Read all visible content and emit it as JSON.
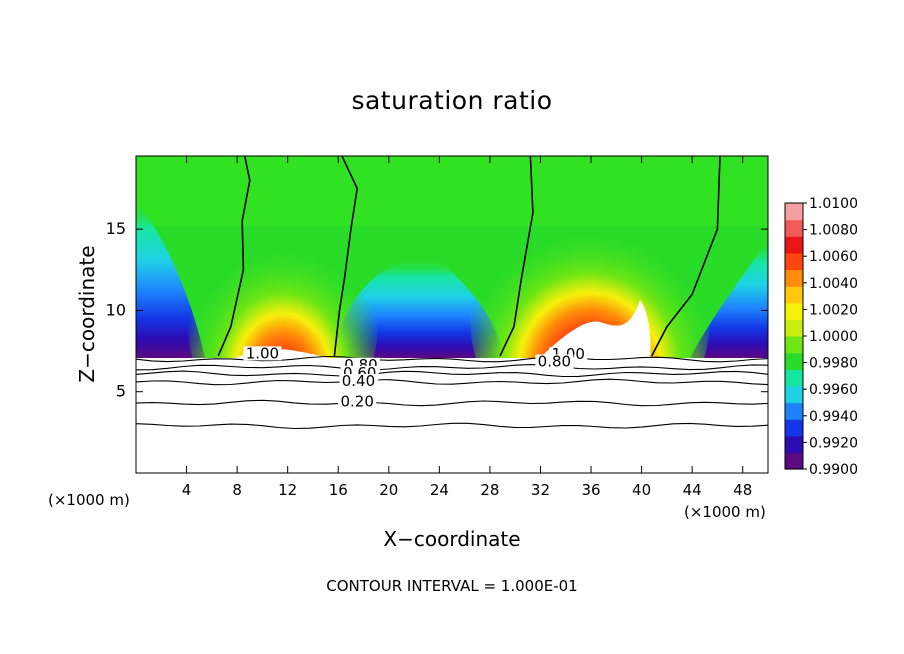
{
  "chart_data": {
    "type": "heatmap",
    "title": "saturation ratio",
    "xlabel": "X−coordinate",
    "ylabel": "Z−coordinate",
    "x_unit_label": "(×1000 m)",
    "x_range": [
      0,
      50
    ],
    "y_range": [
      0,
      19.5
    ],
    "x_ticks": [
      4,
      8,
      12,
      16,
      20,
      24,
      28,
      32,
      36,
      40,
      44,
      48
    ],
    "y_ticks": [
      5,
      10,
      15
    ],
    "colorbar": {
      "min": 0.99,
      "max": 1.01,
      "tick_labels": [
        "0.9900",
        "0.9920",
        "0.9940",
        "0.9960",
        "0.9980",
        "1.0000",
        "1.0020",
        "1.0040",
        "1.0060",
        "1.0080",
        "1.0100"
      ],
      "colors": [
        "#5a0a82",
        "#2c0cb4",
        "#1336e6",
        "#1e82ff",
        "#1ed2e6",
        "#17e6a0",
        "#28dc28",
        "#6ee614",
        "#c8ee10",
        "#f6f00a",
        "#ffc80a",
        "#ff8c0a",
        "#ff460f",
        "#ea1414",
        "#f25a5a",
        "#f5a0a0"
      ]
    },
    "contour_interval": "CONTOUR INTERVAL = 1.000E-01",
    "contour_labels": [
      "1.00",
      "0.80",
      "0.60",
      "0.40",
      "0.20",
      "1.00",
      "0.80"
    ],
    "cloud_base_z": 7.2,
    "features": [
      {
        "kind": "moist plume",
        "x_center": 11,
        "peak_value": 1.0065
      },
      {
        "kind": "moist plume",
        "x_center": 36,
        "peak_value": 1.009
      }
    ],
    "unity_contours": [
      {
        "x": [
          6.5,
          7.5,
          8.5,
          8.4,
          9.0,
          8.6
        ],
        "z": [
          7.2,
          9.0,
          12.5,
          15.5,
          18.0,
          19.5
        ]
      },
      {
        "x": [
          15.7,
          16.1,
          16.5,
          17.0,
          17.5,
          16.3
        ],
        "z": [
          7.2,
          10.0,
          12.0,
          15.0,
          17.5,
          19.5
        ]
      },
      {
        "x": [
          28.8,
          29.9,
          30.5,
          31.4,
          31.2
        ],
        "z": [
          7.2,
          9.0,
          12.0,
          16.0,
          19.5
        ]
      },
      {
        "x": [
          40.8,
          42.0,
          44.0,
          46.0,
          46.2
        ],
        "z": [
          7.2,
          9.0,
          11.0,
          15.0,
          19.5
        ]
      }
    ],
    "subcloud_contours": [
      {
        "value": "1.00",
        "z": 7.0
      },
      {
        "value": "0.80",
        "z": 6.5
      },
      {
        "value": "0.60",
        "z": 6.1
      },
      {
        "value": "0.40",
        "z": 5.6
      },
      {
        "value": "0.20",
        "z": 4.3
      },
      {
        "value": "",
        "z": 2.9
      }
    ]
  }
}
